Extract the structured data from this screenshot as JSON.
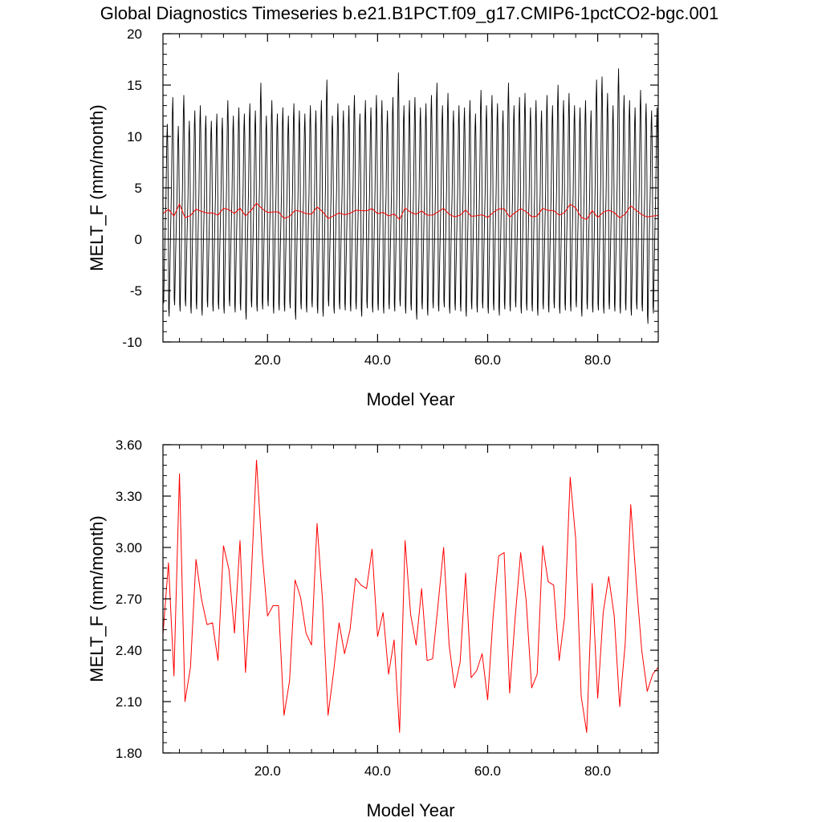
{
  "title": "Global Diagnostics Timeseries b.e21.B1PCT.f09_g17.CMIP6-1pctCO2-bgc.001",
  "chart_data": [
    {
      "type": "line",
      "ylabel": "MELT_F (mm/month)",
      "xlabel": "Model Year",
      "xlim": [
        1,
        91
      ],
      "ylim": [
        -10,
        20
      ],
      "xticks": [
        20,
        40,
        60,
        80
      ],
      "xtick_labels": [
        "20.0",
        "40.0",
        "60.0",
        "80.0"
      ],
      "yticks": [
        -10,
        -5,
        0,
        5,
        10,
        15,
        20
      ],
      "ytick_labels": [
        "-10",
        "-5",
        "0",
        "5",
        "10",
        "15",
        "20"
      ],
      "zero_line": true,
      "series": [
        {
          "kind": "monthly",
          "color": "#000000",
          "monthly_pattern": [
            -6.5,
            -7.2,
            -4.5,
            -2.0,
            0.3,
            2.5,
            4.5,
            8.0,
            11.5,
            13.0,
            10.5,
            5.0
          ],
          "annual_peaks": [
            11.2,
            13.8,
            11.0,
            14.0,
            11.5,
            12.5,
            13.0,
            12.0,
            11.5,
            12.2,
            11.8,
            13.5,
            12.0,
            12.8,
            12.2,
            13.2,
            12.5,
            15.2,
            12.0,
            13.5,
            12.2,
            12.8,
            12.0,
            13.2,
            12.5,
            12.2,
            13.0,
            12.5,
            13.5,
            15.5,
            12.0,
            13.2,
            12.5,
            13.0,
            14.0,
            12.2,
            13.5,
            12.8,
            14.0,
            13.5,
            12.5,
            13.8,
            16.2,
            13.0,
            13.5,
            13.8,
            12.8,
            13.2,
            14.0,
            15.2,
            13.0,
            14.2,
            12.5,
            13.0,
            12.8,
            13.5,
            12.2,
            14.5,
            13.0,
            14.0,
            13.2,
            12.5,
            15.2,
            13.0,
            13.8,
            14.2,
            12.8,
            13.5,
            12.5,
            14.0,
            13.0,
            15.0,
            13.5,
            14.2,
            13.0,
            12.8,
            13.5,
            12.5,
            15.5,
            15.8,
            14.2,
            13.0,
            16.6,
            14.0,
            13.5,
            12.8,
            14.5,
            13.2,
            12.5,
            12.8,
            12.6
          ],
          "annual_troughs": [
            -6.2,
            -7.5,
            -6.4,
            -7.0,
            -6.5,
            -7.2,
            -6.8,
            -7.4,
            -6.6,
            -7.0,
            -6.8,
            -7.2,
            -6.5,
            -7.1,
            -6.9,
            -7.8,
            -6.6,
            -7.0,
            -6.8,
            -6.5,
            -7.2,
            -6.9,
            -7.0,
            -6.7,
            -7.8,
            -6.8,
            -7.1,
            -6.6,
            -7.2,
            -7.5,
            -6.5,
            -7.2,
            -6.8,
            -6.9,
            -7.0,
            -6.8,
            -7.5,
            -6.7,
            -7.1,
            -6.9,
            -7.2,
            -6.8,
            -7.0,
            -6.5,
            -7.2,
            -6.9,
            -7.8,
            -6.8,
            -7.4,
            -6.7,
            -7.0,
            -6.6,
            -7.2,
            -6.9,
            -7.0,
            -7.5,
            -6.8,
            -7.1,
            -6.7,
            -7.2,
            -6.9,
            -7.4,
            -6.8,
            -7.0,
            -6.6,
            -7.2,
            -6.9,
            -7.0,
            -7.4,
            -6.8,
            -7.1,
            -6.7,
            -7.2,
            -6.9,
            -7.0,
            -6.6,
            -7.5,
            -6.8,
            -7.1,
            -6.9,
            -7.2,
            -6.8,
            -7.0,
            -7.2,
            -6.9,
            -7.4,
            -6.8,
            -7.0,
            -8.2,
            -7.2,
            -7.0
          ]
        },
        {
          "kind": "annual",
          "color": "#ff0000",
          "values": [
            2.49,
            2.91,
            2.25,
            3.43,
            2.1,
            2.3,
            2.93,
            2.7,
            2.55,
            2.56,
            2.34,
            3.01,
            2.87,
            2.5,
            3.04,
            2.27,
            2.79,
            3.51,
            2.98,
            2.6,
            2.66,
            2.66,
            2.02,
            2.22,
            2.81,
            2.71,
            2.5,
            2.43,
            3.14,
            2.69,
            2.02,
            2.27,
            2.56,
            2.38,
            2.52,
            2.82,
            2.78,
            2.76,
            2.99,
            2.48,
            2.62,
            2.26,
            2.46,
            1.92,
            3.04,
            2.61,
            2.43,
            2.76,
            2.34,
            2.35,
            2.67,
            3.0,
            2.43,
            2.18,
            2.33,
            2.85,
            2.24,
            2.28,
            2.38,
            2.11,
            2.6,
            2.95,
            2.97,
            2.15,
            2.59,
            2.97,
            2.69,
            2.18,
            2.26,
            3.01,
            2.8,
            2.78,
            2.34,
            2.6,
            3.41,
            3.05,
            2.13,
            1.92,
            2.79,
            2.12,
            2.62,
            2.83,
            2.6,
            2.07,
            2.44,
            3.25,
            2.8,
            2.4,
            2.16,
            2.26,
            2.3
          ]
        }
      ]
    },
    {
      "type": "line",
      "ylabel": "MELT_F (mm/month)",
      "xlabel": "Model Year",
      "xlim": [
        1,
        91
      ],
      "ylim": [
        1.8,
        3.6
      ],
      "xticks": [
        20,
        40,
        60,
        80
      ],
      "xtick_labels": [
        "20.0",
        "40.0",
        "60.0",
        "80.0"
      ],
      "yticks": [
        1.8,
        2.1,
        2.4,
        2.7,
        3.0,
        3.3,
        3.6
      ],
      "ytick_labels": [
        "1.80",
        "2.10",
        "2.40",
        "2.70",
        "3.00",
        "3.30",
        "3.60"
      ],
      "series": [
        {
          "kind": "annual",
          "color": "#ff0000",
          "values": [
            2.49,
            2.91,
            2.25,
            3.43,
            2.1,
            2.3,
            2.93,
            2.7,
            2.55,
            2.56,
            2.34,
            3.01,
            2.87,
            2.5,
            3.04,
            2.27,
            2.79,
            3.51,
            2.98,
            2.6,
            2.66,
            2.66,
            2.02,
            2.22,
            2.81,
            2.71,
            2.5,
            2.43,
            3.14,
            2.69,
            2.02,
            2.27,
            2.56,
            2.38,
            2.52,
            2.82,
            2.78,
            2.76,
            2.99,
            2.48,
            2.62,
            2.26,
            2.46,
            1.92,
            3.04,
            2.61,
            2.43,
            2.76,
            2.34,
            2.35,
            2.67,
            3.0,
            2.43,
            2.18,
            2.33,
            2.85,
            2.24,
            2.28,
            2.38,
            2.11,
            2.6,
            2.95,
            2.97,
            2.15,
            2.59,
            2.97,
            2.69,
            2.18,
            2.26,
            3.01,
            2.8,
            2.78,
            2.34,
            2.6,
            3.41,
            3.05,
            2.13,
            1.92,
            2.79,
            2.12,
            2.62,
            2.83,
            2.6,
            2.07,
            2.44,
            3.25,
            2.8,
            2.4,
            2.16,
            2.26,
            2.3
          ]
        }
      ]
    }
  ]
}
